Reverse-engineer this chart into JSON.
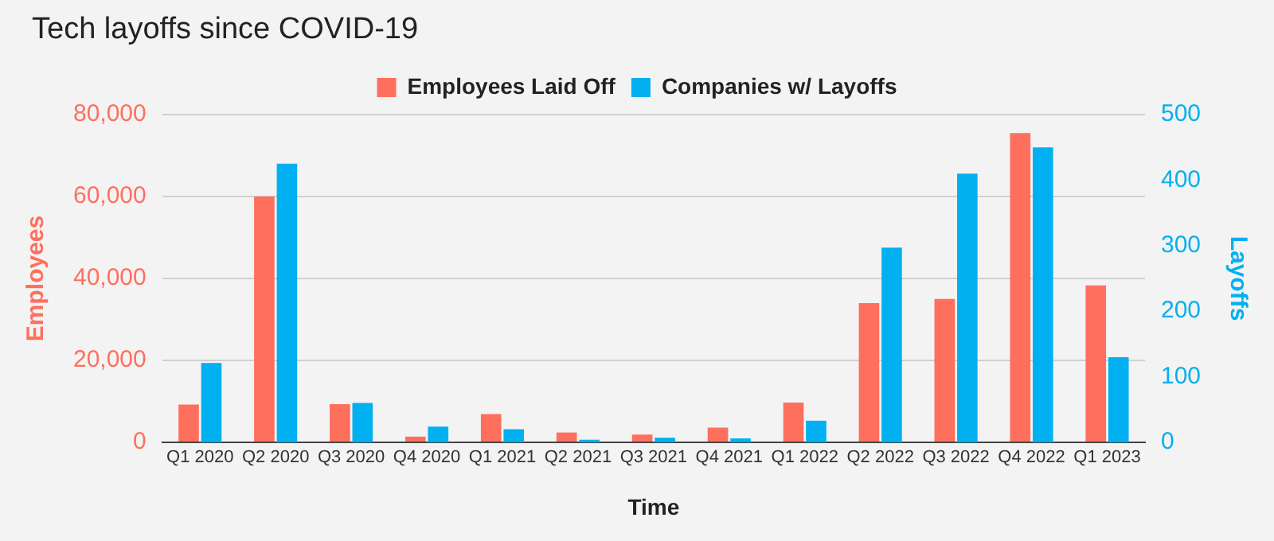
{
  "chart_data": {
    "type": "bar",
    "title": "Tech layoffs since COVID-19",
    "xlabel": "Time",
    "ylabel": "Employees",
    "y2label": "Layoffs",
    "categories": [
      "Q1 2020",
      "Q2 2020",
      "Q3 2020",
      "Q4 2020",
      "Q1 2021",
      "Q2 2021",
      "Q3 2021",
      "Q4 2021",
      "Q1 2022",
      "Q2 2022",
      "Q3 2022",
      "Q4 2022",
      "Q1 2023"
    ],
    "series": [
      {
        "name": "Employees Laid Off",
        "color": "#ff6f5e",
        "values": [
          9200,
          60000,
          9300,
          1400,
          6900,
          2400,
          1900,
          3600,
          9700,
          34000,
          35000,
          75500,
          38300
        ]
      },
      {
        "name": "Companies w/ Layoffs",
        "color": "#00b0f0",
        "axis": "y2",
        "values": [
          121,
          425,
          60,
          24,
          20,
          4,
          7,
          6,
          33,
          297,
          410,
          450,
          130
        ]
      }
    ],
    "ylim": [
      0,
      80000
    ],
    "yticks": [
      {
        "value": 0,
        "label": "0"
      },
      {
        "value": 20000,
        "label": "20,000"
      },
      {
        "value": 40000,
        "label": "40,000"
      },
      {
        "value": 60000,
        "label": "60,000"
      },
      {
        "value": 80000,
        "label": "80,000"
      }
    ],
    "y2lim": [
      0,
      500
    ],
    "y2ticks": [
      0,
      100,
      200,
      300,
      400,
      500
    ],
    "grid": "y",
    "legend": "top"
  }
}
